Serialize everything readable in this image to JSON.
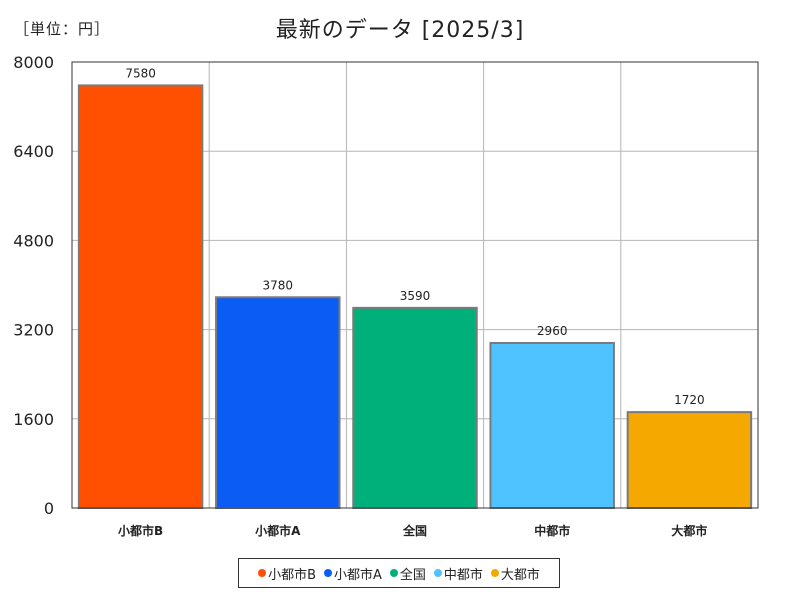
{
  "unit_label": "［単位：円］",
  "chart_data": {
    "type": "bar",
    "title": "最新のデータ [2025/3]",
    "categories": [
      "小都市B",
      "小都市A",
      "全国",
      "中都市",
      "大都市"
    ],
    "values": [
      7580,
      3780,
      3590,
      2960,
      1720
    ],
    "colors": [
      "#ff4f00",
      "#0a5cf5",
      "#00b07a",
      "#4fc3ff",
      "#f5a800"
    ],
    "ylim": [
      0,
      8000
    ],
    "yticks": [
      0,
      1600,
      3200,
      4800,
      6400,
      8000
    ],
    "grid": true,
    "legend_position": "bottom",
    "xlabel": "",
    "ylabel": ""
  }
}
